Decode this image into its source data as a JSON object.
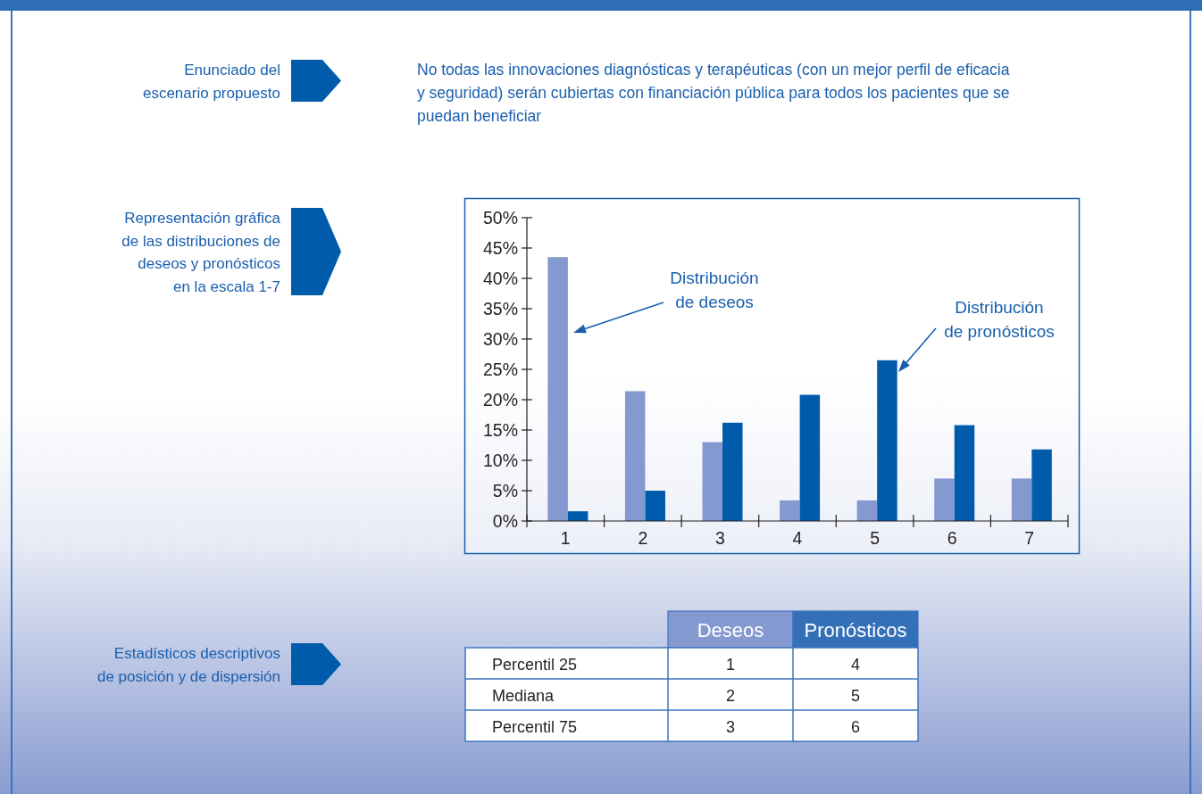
{
  "chart_data": [
    {
      "type": "bar",
      "categories": [
        "1",
        "2",
        "3",
        "4",
        "5",
        "6",
        "7"
      ],
      "series": [
        {
          "color": "#8499d0",
          "values": [
            43.5,
            21.4,
            13.0,
            3.4,
            3.4,
            7.0,
            7.0
          ]
        },
        {
          "color": "#005bab",
          "values": [
            1.6,
            5.0,
            16.2,
            20.8,
            26.5,
            15.8,
            11.8
          ]
        }
      ],
      "ylim": [
        0,
        50
      ],
      "yticks": [
        {
          "value": 0,
          "label": "0%"
        },
        {
          "value": 5,
          "label": "5%"
        },
        {
          "value": 10,
          "label": "10%"
        },
        {
          "value": 15,
          "label": "15%"
        },
        {
          "value": 20,
          "label": "20%"
        },
        {
          "value": 25,
          "label": "25%"
        },
        {
          "value": 30,
          "label": "30%"
        },
        {
          "value": 35,
          "label": "35%"
        },
        {
          "value": 40,
          "label": "40%"
        },
        {
          "value": 45,
          "label": "45%"
        },
        {
          "value": 50,
          "label": "50%"
        }
      ],
      "annotations": [
        "Enunciado del\nescenario propuesto",
        "No todas las innovaciones diagnósticas y terapéuticas (con un mejor perfil de eficacia\ny seguridad) serán cubiertas con financiación pública para todos los pacientes que se\npuedan beneficiar",
        "Representación gráfica\nde las distribuciones de\ndeseos y pronósticos\nen la escala 1-7",
        "Distribución\nde deseos",
        "Distribución\nde pronósticos"
      ]
    },
    {
      "type": "other",
      "categories": [
        "Percentil 25",
        "Mediana",
        "Percentil 75"
      ],
      "series": [
        {
          "name": "Deseos",
          "values": [
            1,
            2,
            3
          ]
        },
        {
          "name": "Pronósticos",
          "values": [
            4,
            5,
            6
          ]
        }
      ],
      "data_labels": true,
      "annotations": [
        "Estadísticos descriptivos\nde posición y de dispersión"
      ]
    }
  ]
}
